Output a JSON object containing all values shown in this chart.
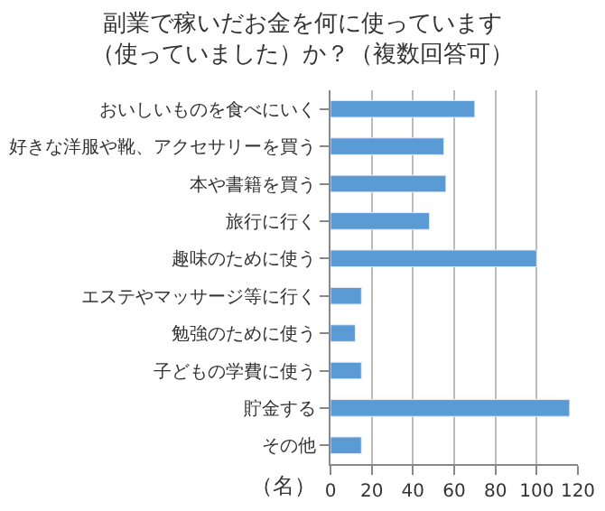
{
  "chart_data": {
    "type": "bar",
    "orientation": "horizontal",
    "title": "副業で稼いだお金を何に使っています（使っていました）か？（複数回答可）",
    "xlabel": "（名）",
    "categories": [
      "おいしいものを食べにいく",
      "好きな洋服や靴、アクセサリーを買う",
      "本や書籍を買う",
      "旅行に行く",
      "趣味のために使う",
      "エステやマッサージ等に行く",
      "勉強のために使う",
      "子どもの学費に使う",
      "貯金する",
      "その他"
    ],
    "values": [
      70,
      55,
      56,
      48,
      100,
      15,
      12,
      15,
      116,
      15
    ],
    "color": "#5b9bd5",
    "xlim": [
      0,
      120
    ],
    "xticks": [
      0,
      20,
      40,
      60,
      80,
      100,
      120
    ],
    "grid": "x",
    "legend": false
  }
}
